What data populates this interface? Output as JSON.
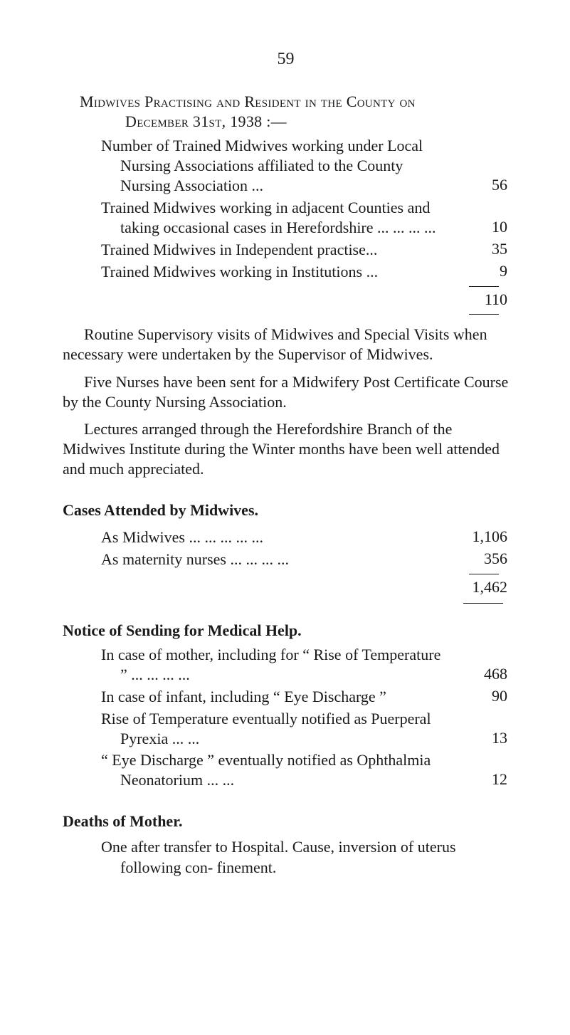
{
  "page_number": "59",
  "title": {
    "line1": "Midwives Practising and Resident in the County on",
    "line2": "December 31st, 1938 :—"
  },
  "midwives_stats": {
    "items": [
      {
        "label_html": "Number of Trained Midwives working under Local Nursing Associations affiliated to the County Nursing Association   ...",
        "value": "56"
      },
      {
        "label_html": "Trained  Midwives  working  in  adjacent Counties and taking occasional cases in Herefordshire   ...   ...   ...   ...",
        "value": "10"
      },
      {
        "label_html": "Trained Midwives in Independent practise...",
        "value": "35"
      },
      {
        "label_html": "Trained Midwives working in Institutions ...",
        "value": "9"
      }
    ],
    "total": "110"
  },
  "paragraphs": {
    "p1": "Routine Supervisory visits of Midwives and Special Visits when necessary were undertaken by the Supervisor of Midwives.",
    "p2": "Five Nurses have been sent for a Midwifery Post Certificate Course by the County Nursing Association.",
    "p3": "Lectures arranged through the Herefordshire Branch of the Midwives Institute during the Winter months have been well attended and much appreciated."
  },
  "cases_attended": {
    "heading": "Cases Attended by Midwives.",
    "items": [
      {
        "label": "As Midwives  ...   ...   ...   ...   ...",
        "value": "1,106"
      },
      {
        "label": "As maternity nurses ...   ...   ...   ...",
        "value": "356"
      }
    ],
    "total": "1,462"
  },
  "notice_medical_help": {
    "heading": "Notice of Sending for Medical Help.",
    "items": [
      {
        "label_html": "In case of mother, including for “ Rise of Temperature ” ...   ...   ...   ...",
        "value": "468"
      },
      {
        "label_html": "In case of infant, including “ Eye Discharge ”",
        "value": "90"
      },
      {
        "label_html": "Rise of Temperature eventually notified as Puerperal Pyrexia        ...   ...",
        "value": "13"
      },
      {
        "label_html": "“ Eye  Discharge ”  eventually  notified  as Ophthalmia Neonatorium   ...   ...",
        "value": "12"
      }
    ]
  },
  "deaths_mother": {
    "heading": "Deaths of Mother.",
    "item": "One  after  transfer  to  Hospital.   Cause, inversion of uterus following con- finement."
  }
}
